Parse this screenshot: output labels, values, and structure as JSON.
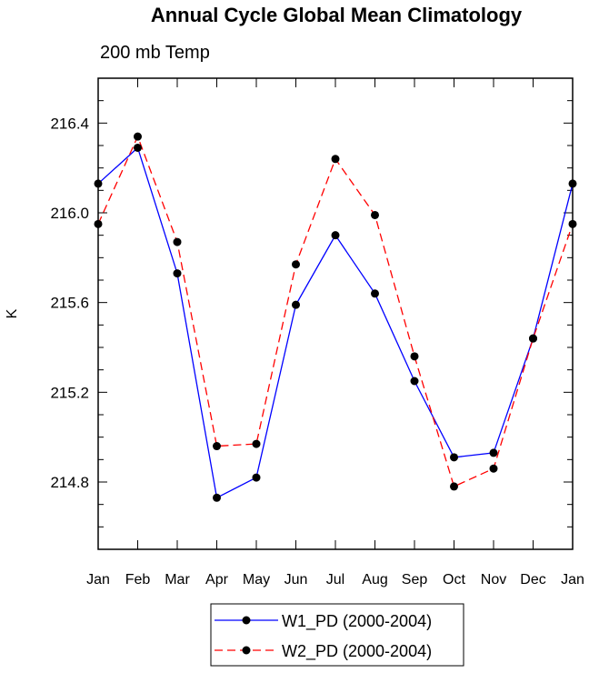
{
  "chart_data": {
    "type": "line",
    "title": "Annual Cycle Global Mean Climatology",
    "subtitle": "200 mb Temp",
    "xlabel": "",
    "ylabel": "K",
    "categories": [
      "Jan",
      "Feb",
      "Mar",
      "Apr",
      "May",
      "Jun",
      "Jul",
      "Aug",
      "Sep",
      "Oct",
      "Nov",
      "Dec",
      "Jan"
    ],
    "ylim": [
      214.5,
      216.6
    ],
    "yticks": [
      214.8,
      215.2,
      215.6,
      216.0,
      216.4
    ],
    "ytick_labels": [
      "214.8",
      "215.2",
      "215.6",
      "216.0",
      "216.4"
    ],
    "grid": false,
    "legend_position": "bottom-center",
    "series": [
      {
        "name": "W1_PD (2000-2004)",
        "color": "#0000ff",
        "dash": "solid",
        "values": [
          216.13,
          216.29,
          215.73,
          214.73,
          214.82,
          215.59,
          215.9,
          215.64,
          215.25,
          214.91,
          214.93,
          215.44,
          216.13
        ]
      },
      {
        "name": "W2_PD (2000-2004)",
        "color": "#ff0000",
        "dash": "dashed",
        "values": [
          215.95,
          216.34,
          215.87,
          214.96,
          214.97,
          215.77,
          216.24,
          215.99,
          215.36,
          214.78,
          214.86,
          215.44,
          215.95
        ]
      }
    ]
  }
}
